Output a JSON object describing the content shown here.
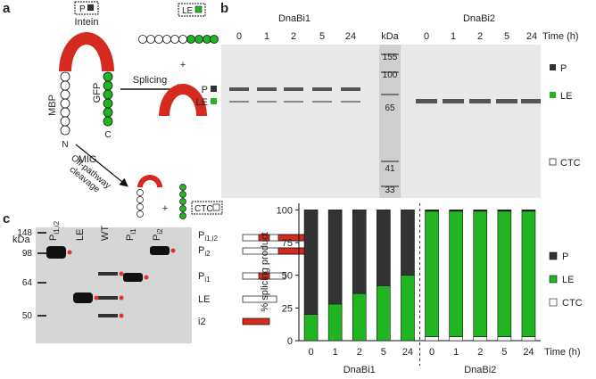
{
  "panel_a": {
    "letter": "a",
    "p_box": "P",
    "intein": "Intein",
    "mbp": "MBP",
    "gfp": "GFP",
    "n": "N",
    "c": "C",
    "mig": "MIG",
    "splicing": "Splicing",
    "le_box": "LE",
    "plus_1": "+",
    "off_pathway": [
      "Off-pathway",
      "cleavage"
    ],
    "plus_2": "+",
    "ctc_box": "CTC"
  },
  "panel_b": {
    "letter": "b",
    "groups": [
      "DnaBi1",
      "DnaBi2"
    ],
    "times": [
      "0",
      "1",
      "2",
      "5",
      "24"
    ],
    "time_unit": "Time (h)",
    "kda": "kDa",
    "markers": [
      "155",
      "100",
      "65",
      "41",
      "33"
    ],
    "left_labels": [
      "P",
      "LE"
    ],
    "right_labels": [
      "P",
      "LE",
      "CTC"
    ]
  },
  "chart_data": {
    "type": "bar",
    "stacked": true,
    "ylabel": "% splicing product",
    "xlabel": "Time (h)",
    "groups": [
      "DnaBi1",
      "DnaBi2"
    ],
    "categories": [
      "0",
      "1",
      "2",
      "5",
      "24",
      "0",
      "1",
      "2",
      "5",
      "24"
    ],
    "series": [
      {
        "name": "CTC",
        "color": "#ffffff",
        "values": [
          0,
          0,
          0,
          0,
          0,
          3,
          3,
          3,
          3,
          3
        ]
      },
      {
        "name": "LE",
        "color": "#22b522",
        "values": [
          20,
          28,
          36,
          42,
          50,
          96,
          96,
          96,
          96,
          96
        ]
      },
      {
        "name": "P",
        "color": "#333333",
        "values": [
          80,
          72,
          64,
          58,
          50,
          1,
          1,
          1,
          1,
          1
        ]
      }
    ],
    "ylim": [
      0,
      105
    ],
    "yticks": [
      0,
      25,
      50,
      75,
      100
    ]
  },
  "panel_c": {
    "letter": "c",
    "kda": "kDa",
    "markers": [
      "148",
      "98",
      "64",
      "50"
    ],
    "lanes": [
      {
        "main": "P",
        "sub": "i1,i2"
      },
      {
        "main": "LE"
      },
      {
        "main": "WT"
      },
      {
        "main": "P",
        "sub": "i1"
      },
      {
        "main": "P",
        "sub": "i2"
      }
    ],
    "legend": [
      {
        "main": "P",
        "sub": "i1,i2"
      },
      {
        "main": "P",
        "sub": "i2"
      },
      {
        "main": "P",
        "sub": "i1"
      },
      {
        "main": "LE"
      },
      {
        "main": "i2"
      }
    ]
  }
}
